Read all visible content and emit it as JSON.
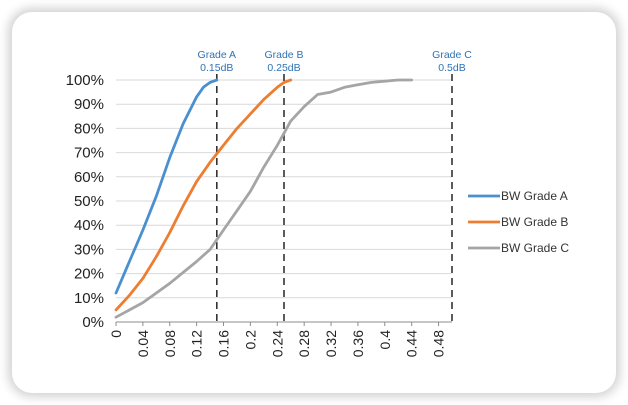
{
  "chart_data": {
    "type": "line",
    "title": "",
    "xlabel": "",
    "ylabel": "",
    "xlim": [
      0,
      0.5
    ],
    "ylim": [
      0,
      100
    ],
    "x_ticks": [
      "0",
      "0.04",
      "0.08",
      "0.12",
      "0.16",
      "0.2",
      "0.24",
      "0.28",
      "0.32",
      "0.36",
      "0.4",
      "0.44",
      "0.48"
    ],
    "y_ticks": [
      "0%",
      "10%",
      "20%",
      "30%",
      "40%",
      "50%",
      "60%",
      "70%",
      "80%",
      "90%",
      "100%"
    ],
    "grid": "horizontal",
    "legend_position": "right",
    "reference_lines": [
      {
        "x": 0.15,
        "line1": "Grade A",
        "line2": "0.15dB"
      },
      {
        "x": 0.25,
        "line1": "Grade B",
        "line2": "0.25dB"
      },
      {
        "x": 0.5,
        "line1": "Grade C",
        "line2": "0.5dB"
      }
    ],
    "series": [
      {
        "name": "BW Grade A",
        "color": "#4a8fd0",
        "points": [
          [
            0,
            12
          ],
          [
            0.02,
            25
          ],
          [
            0.04,
            38
          ],
          [
            0.06,
            52
          ],
          [
            0.08,
            68
          ],
          [
            0.1,
            82
          ],
          [
            0.12,
            93
          ],
          [
            0.13,
            97
          ],
          [
            0.14,
            99
          ],
          [
            0.15,
            100
          ]
        ]
      },
      {
        "name": "BW Grade B",
        "color": "#ed7d31",
        "points": [
          [
            0,
            5
          ],
          [
            0.02,
            11
          ],
          [
            0.04,
            18
          ],
          [
            0.06,
            27
          ],
          [
            0.08,
            37
          ],
          [
            0.1,
            48
          ],
          [
            0.12,
            58
          ],
          [
            0.14,
            66
          ],
          [
            0.16,
            73
          ],
          [
            0.18,
            80
          ],
          [
            0.2,
            86
          ],
          [
            0.22,
            92
          ],
          [
            0.24,
            97
          ],
          [
            0.25,
            99
          ],
          [
            0.26,
            100
          ]
        ]
      },
      {
        "name": "BW Grade C",
        "color": "#a5a5a5",
        "points": [
          [
            0,
            2
          ],
          [
            0.04,
            8
          ],
          [
            0.08,
            16
          ],
          [
            0.12,
            25
          ],
          [
            0.14,
            30
          ],
          [
            0.16,
            38
          ],
          [
            0.18,
            46
          ],
          [
            0.2,
            54
          ],
          [
            0.22,
            64
          ],
          [
            0.24,
            73
          ],
          [
            0.26,
            83
          ],
          [
            0.28,
            89
          ],
          [
            0.3,
            94
          ],
          [
            0.32,
            95
          ],
          [
            0.34,
            97
          ],
          [
            0.36,
            98
          ],
          [
            0.38,
            99
          ],
          [
            0.4,
            99.5
          ],
          [
            0.42,
            100
          ],
          [
            0.44,
            100
          ]
        ]
      }
    ]
  }
}
